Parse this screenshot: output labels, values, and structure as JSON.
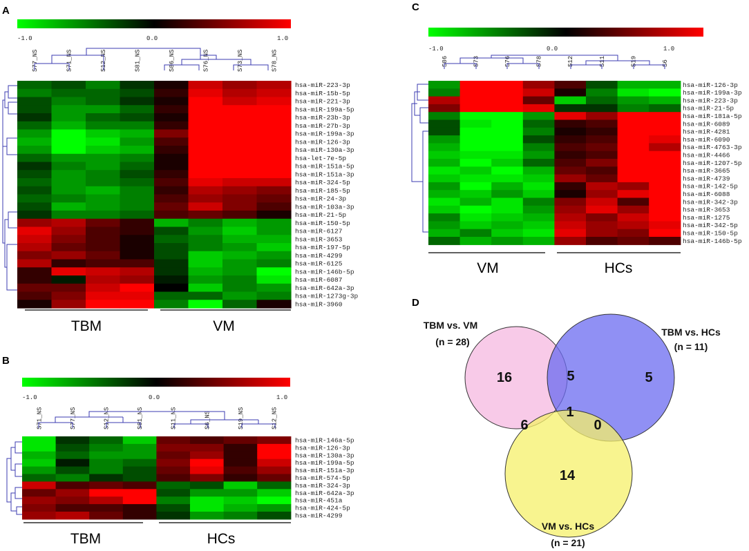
{
  "panels": {
    "A": {
      "letter": "A",
      "scale": {
        "min": "-1.0",
        "mid": "0.0",
        "max": "1.0"
      },
      "columns": [
        "S77_NS",
        "S71_NS",
        "S12_NS",
        "S81_NS",
        "S86_NS",
        "S76_NS",
        "S73_NS",
        "S78_NS"
      ],
      "rows": [
        "hsa-miR-223-3p",
        "hsa-miR-15b-5p",
        "hsa-miR-221-3p",
        "hsa-miR-199a-5p",
        "hsa-miR-23b-3p",
        "hsa-miR-27b-3p",
        "hsa-miR-199a-3p",
        "hsa-miR-126-3p",
        "hsa-miR-130a-3p",
        "hsa-let-7e-5p",
        "hsa-miR-151a-5p",
        "hsa-miR-151a-3p",
        "hsa-miR-324-5p",
        "hsa-miR-185-5p",
        "hsa-miR-24-3p",
        "hsa-miR-103a-3p",
        "hsa-miR-21-5p",
        "hsa-miR-150-5p",
        "hsa-miR-6127",
        "hsa-miR-3653",
        "hsa-miR-197-5p",
        "hsa-miR-4299",
        "hsa-miR-6125",
        "hsa-miR-146b-5p",
        "hsa-miR-6087",
        "hsa-miR-642a-3p",
        "hsa-miR-1273g-3p",
        "hsa-miR-3960"
      ],
      "groups": [
        "TBM",
        "VM"
      ]
    },
    "B": {
      "letter": "B",
      "scale": {
        "min": "-1.0",
        "mid": "0.0",
        "max": "1.0"
      },
      "columns": [
        "S71_NS",
        "S77_NS",
        "S12_NS",
        "S81_NS",
        "S11_NS",
        "S6_NS",
        "S19_NS",
        "S12_NS"
      ],
      "rows": [
        "hsa-miR-146a-5p",
        "hsa-miR-126-3p",
        "hsa-miR-130a-3p",
        "hsa-miR-199a-5p",
        "hsa-miR-151a-3p",
        "hsa-miR-574-5p",
        "hsa-miR-324-3p",
        "hsa-miR-642a-3p",
        "hsa-miR-451a",
        "hsa-miR-424-5p",
        "hsa-miR-4299"
      ],
      "groups": [
        "TBM",
        "HCs"
      ]
    },
    "C": {
      "letter": "C",
      "scale": {
        "min": "-1.0",
        "mid": "0.0",
        "max": "1.0"
      },
      "columns": [
        "S86",
        "S73",
        "S76",
        "S78",
        "S12",
        "S11",
        "S19",
        "S6"
      ],
      "rows": [
        "hsa-miR-126-3p",
        "hsa-miR-199a-3p",
        "hsa-miR-223-3p",
        "hsa-miR-21-5p",
        "hsa-miR-181a-5p",
        "hsa-miR-6089",
        "hsa-miR-4281",
        "hsa-miR-6090",
        "hsa-miR-4763-3p",
        "hsa-miR-4466",
        "hsa-miR-1207-5p",
        "hsa-miR-3665",
        "hsa-miR-4739",
        "hsa-miR-142-5p",
        "hsa-miR-6088",
        "hsa-miR-342-3p",
        "hsa-miR-3653",
        "hsa-miR-1275",
        "hsa-miR-342-5p",
        "hsa-miR-150-5p",
        "hsa-miR-146b-5p"
      ],
      "groups": [
        "VM",
        "HCs"
      ]
    },
    "D": {
      "letter": "D",
      "sets": [
        {
          "label": "TBM vs. VM",
          "n": "(n = 28)",
          "color": "#f5b8e0"
        },
        {
          "label": "TBM vs. HCs",
          "n": "(n = 11)",
          "color": "#6b6bf0"
        },
        {
          "label": "VM vs. HCs",
          "n": "(n = 21)",
          "color": "#f5f06a"
        }
      ],
      "regions": {
        "tbm_vm_only": "16",
        "tbm_hcs_only": "5",
        "vm_hcs_only": "14",
        "tbm_vm_and_tbm_hcs": "5",
        "tbm_vm_and_vm_hcs": "6",
        "tbm_hcs_and_vm_hcs": "0",
        "all_three": "1"
      }
    }
  },
  "chart_data": [
    {
      "type": "heatmap",
      "panel": "A",
      "color_scale": {
        "min": -1.0,
        "max": 1.0,
        "low_color": "#00ff00",
        "mid_color": "#000000",
        "high_color": "#ff0000"
      },
      "columns": [
        "S77_NS",
        "S71_NS",
        "S12_NS",
        "S81_NS",
        "S86_NS",
        "S76_NS",
        "S73_NS",
        "S78_NS"
      ],
      "groups": [
        {
          "name": "TBM",
          "columns": [
            0,
            1,
            2,
            3
          ]
        },
        {
          "name": "VM",
          "columns": [
            4,
            5,
            6,
            7
          ]
        }
      ],
      "values": [
        [
          -0.4,
          -0.3,
          -0.5,
          -0.2,
          0.1,
          0.8,
          0.6,
          0.7
        ],
        [
          -0.5,
          -0.4,
          -0.4,
          -0.3,
          0.2,
          0.9,
          0.7,
          0.8
        ],
        [
          -0.3,
          -0.5,
          -0.4,
          -0.2,
          0.1,
          1.0,
          0.8,
          0.9
        ],
        [
          -0.3,
          -0.6,
          -0.6,
          -0.4,
          0.2,
          1.0,
          1.0,
          1.0
        ],
        [
          -0.2,
          -0.6,
          -0.4,
          -0.3,
          0.1,
          1.0,
          1.0,
          1.0
        ],
        [
          -0.4,
          -0.7,
          -0.5,
          -0.5,
          0.2,
          1.0,
          1.0,
          1.0
        ],
        [
          -0.6,
          -1.0,
          -0.8,
          -0.7,
          0.5,
          1.0,
          1.0,
          1.0
        ],
        [
          -0.7,
          -1.0,
          -0.9,
          -0.6,
          0.3,
          1.0,
          1.0,
          1.0
        ],
        [
          -0.6,
          -1.0,
          -0.8,
          -0.7,
          0.2,
          1.0,
          1.0,
          1.0
        ],
        [
          -0.4,
          -0.6,
          -0.6,
          -0.5,
          0.1,
          1.0,
          1.0,
          1.0
        ],
        [
          -0.2,
          -0.5,
          -0.6,
          -0.4,
          0.1,
          1.0,
          1.0,
          1.0
        ],
        [
          -0.3,
          -0.6,
          -0.5,
          -0.3,
          0.2,
          1.0,
          1.0,
          1.0
        ],
        [
          -0.4,
          -0.6,
          -0.5,
          -0.4,
          0.3,
          0.9,
          0.8,
          0.8
        ],
        [
          -0.3,
          -0.6,
          -0.7,
          -0.5,
          0.2,
          0.7,
          0.6,
          0.5
        ],
        [
          -0.4,
          -0.5,
          -0.6,
          -0.5,
          0.3,
          0.6,
          0.5,
          0.4
        ],
        [
          -0.3,
          -0.7,
          -0.6,
          -0.5,
          0.4,
          0.8,
          0.5,
          0.3
        ],
        [
          -0.2,
          -0.5,
          -0.5,
          -0.4,
          0.3,
          0.4,
          0.3,
          0.1
        ],
        [
          0.6,
          0.7,
          0.4,
          0.2,
          -0.7,
          -0.5,
          -0.7,
          -0.6
        ],
        [
          0.9,
          0.6,
          0.3,
          0.2,
          -0.3,
          -0.6,
          -0.8,
          -0.6
        ],
        [
          0.8,
          0.5,
          0.3,
          0.1,
          -0.4,
          -0.5,
          -0.7,
          -0.7
        ],
        [
          0.7,
          0.4,
          0.3,
          0.1,
          -0.3,
          -0.5,
          -0.6,
          -0.8
        ],
        [
          0.5,
          0.6,
          0.4,
          0.1,
          -0.3,
          -0.8,
          -0.7,
          -0.6
        ],
        [
          0.7,
          0.2,
          0.3,
          0.3,
          -0.2,
          -0.8,
          -0.6,
          -0.5
        ],
        [
          0.2,
          0.9,
          0.8,
          0.7,
          -0.2,
          -0.7,
          -0.6,
          -1.0
        ],
        [
          0.2,
          -0.1,
          0.7,
          0.6,
          -0.1,
          -0.6,
          -0.5,
          -0.9
        ],
        [
          0.4,
          0.4,
          0.8,
          1.0,
          0.0,
          -0.8,
          -0.5,
          -0.6
        ],
        [
          0.3,
          0.5,
          0.9,
          0.9,
          -0.4,
          -0.4,
          -0.6,
          -0.5
        ],
        [
          0.1,
          0.6,
          1.0,
          1.0,
          -0.5,
          -1.0,
          -0.4,
          0.1
        ]
      ]
    },
    {
      "type": "heatmap",
      "panel": "B",
      "color_scale": {
        "min": -1.0,
        "max": 1.0,
        "low_color": "#00ff00",
        "mid_color": "#000000",
        "high_color": "#ff0000"
      },
      "columns": [
        "S71_NS",
        "S77_NS",
        "S12_NS",
        "S81_NS",
        "S11_NS",
        "S6_NS",
        "S19_NS",
        "S12_NS"
      ],
      "groups": [
        {
          "name": "TBM",
          "columns": [
            0,
            1,
            2,
            3
          ]
        },
        {
          "name": "HCs",
          "columns": [
            4,
            5,
            6,
            7
          ]
        }
      ],
      "values": [
        [
          -0.9,
          -0.2,
          -0.4,
          -0.8,
          0.4,
          0.3,
          0.4,
          0.5
        ],
        [
          -0.9,
          -0.3,
          -0.5,
          -0.6,
          0.5,
          0.5,
          0.2,
          1.0
        ],
        [
          -0.7,
          -0.4,
          -0.6,
          -0.6,
          0.4,
          0.6,
          0.2,
          1.0
        ],
        [
          -0.8,
          -0.1,
          -0.5,
          -0.4,
          0.5,
          1.0,
          0.2,
          0.8
        ],
        [
          -0.6,
          -0.3,
          -0.5,
          -0.3,
          0.4,
          0.9,
          0.3,
          0.6
        ],
        [
          -0.4,
          -0.5,
          -0.2,
          -0.3,
          0.3,
          0.5,
          0.2,
          0.4
        ],
        [
          0.8,
          0.3,
          0.4,
          0.3,
          -0.4,
          -0.3,
          -0.8,
          -0.4
        ],
        [
          0.4,
          0.6,
          1.0,
          1.0,
          -0.3,
          -0.6,
          -0.6,
          -0.8
        ],
        [
          0.6,
          0.5,
          0.7,
          1.0,
          -0.5,
          -0.9,
          -0.8,
          -1.0
        ],
        [
          0.5,
          0.3,
          0.3,
          0.2,
          -0.3,
          -0.9,
          -0.7,
          -0.6
        ],
        [
          0.6,
          0.7,
          0.4,
          0.2,
          -0.2,
          -0.6,
          -0.5,
          -0.3
        ]
      ]
    },
    {
      "type": "heatmap",
      "panel": "C",
      "color_scale": {
        "min": -1.0,
        "max": 1.0,
        "low_color": "#00ff00",
        "mid_color": "#000000",
        "high_color": "#ff0000"
      },
      "columns": [
        "S86",
        "S73",
        "S76",
        "S78",
        "S12",
        "S11",
        "S19",
        "S6"
      ],
      "groups": [
        {
          "name": "VM",
          "columns": [
            0,
            1,
            2,
            3
          ]
        },
        {
          "name": "HCs",
          "columns": [
            4,
            5,
            6,
            7
          ]
        }
      ],
      "values": [
        [
          -0.6,
          1.0,
          1.0,
          0.6,
          0.3,
          -0.3,
          -0.7,
          -0.7
        ],
        [
          -0.5,
          1.0,
          1.0,
          0.8,
          0.1,
          -0.5,
          -0.9,
          -1.0
        ],
        [
          0.7,
          1.0,
          1.0,
          0.4,
          -0.8,
          -0.4,
          -0.6,
          -0.7
        ],
        [
          0.5,
          1.0,
          1.0,
          0.9,
          -0.2,
          -0.2,
          -0.5,
          -0.4
        ],
        [
          -0.5,
          -1.0,
          -1.0,
          -0.6,
          0.9,
          0.6,
          1.0,
          1.0
        ],
        [
          -0.3,
          -0.9,
          -1.0,
          -0.4,
          0.2,
          0.3,
          1.0,
          1.0
        ],
        [
          -0.3,
          -1.0,
          -1.0,
          -0.5,
          0.1,
          0.2,
          1.0,
          1.0
        ],
        [
          -0.6,
          -1.0,
          -1.0,
          -0.3,
          0.2,
          0.3,
          1.0,
          0.9
        ],
        [
          -0.7,
          -1.0,
          -1.0,
          -0.5,
          0.3,
          0.4,
          1.0,
          0.7
        ],
        [
          -0.8,
          -0.9,
          -0.9,
          -0.6,
          0.2,
          0.3,
          1.0,
          1.0
        ],
        [
          -0.7,
          -1.0,
          -0.8,
          -0.4,
          0.3,
          0.5,
          1.0,
          1.0
        ],
        [
          -0.9,
          -0.8,
          -1.0,
          -0.7,
          0.4,
          0.3,
          1.0,
          1.0
        ],
        [
          -0.8,
          -0.9,
          -0.9,
          -0.8,
          0.6,
          0.4,
          1.0,
          1.0
        ],
        [
          -0.6,
          -1.0,
          -0.7,
          -0.9,
          0.2,
          0.7,
          0.6,
          1.0
        ],
        [
          -0.7,
          -0.8,
          -0.6,
          -0.8,
          0.1,
          0.6,
          0.9,
          1.0
        ],
        [
          -0.9,
          -0.7,
          -0.9,
          -0.5,
          0.5,
          0.8,
          0.3,
          1.0
        ],
        [
          -0.8,
          -1.0,
          -0.9,
          -0.6,
          0.6,
          0.9,
          0.6,
          1.0
        ],
        [
          -0.5,
          -0.9,
          -0.8,
          -0.7,
          0.7,
          0.5,
          0.8,
          1.0
        ],
        [
          -0.6,
          -0.8,
          -0.7,
          -0.8,
          0.8,
          0.6,
          0.7,
          0.9
        ],
        [
          -0.7,
          -0.5,
          -0.8,
          -0.9,
          0.9,
          0.6,
          0.5,
          1.0
        ],
        [
          -0.4,
          -0.7,
          -0.6,
          -0.7,
          0.6,
          0.3,
          0.4,
          0.3
        ]
      ]
    },
    {
      "type": "venn",
      "panel": "D",
      "sets": [
        "TBM vs. VM",
        "TBM vs. HCs",
        "VM vs. HCs"
      ],
      "set_sizes": [
        28,
        11,
        21
      ],
      "regions": {
        "TBM vs. VM only": 16,
        "TBM vs. HCs only": 5,
        "VM vs. HCs only": 14,
        "TBM vs. VM & TBM vs. HCs": 5,
        "TBM vs. VM & VM vs. HCs": 6,
        "TBM vs. HCs & VM vs. HCs": 0,
        "all three": 1
      }
    }
  ]
}
